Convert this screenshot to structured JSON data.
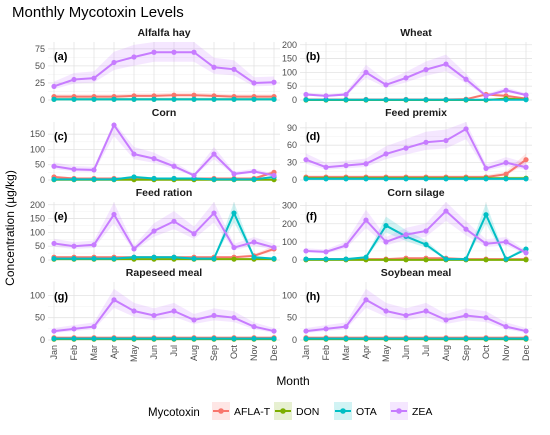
{
  "title": "Monthly Mycotoxin Levels",
  "xlabel": "Month",
  "ylabel": "Concentration (µg/kg)",
  "legend_title": "Mycotoxin",
  "colors": {
    "AFLA-T": "#F8766D",
    "DON": "#7CAE00",
    "OTA": "#00BFC4",
    "ZEA": "#C77CFF"
  },
  "chart_data": {
    "type": "line",
    "months": [
      "Jan",
      "Feb",
      "Mar",
      "Apr",
      "May",
      "Jun",
      "Jul",
      "Aug",
      "Sep",
      "Oct",
      "Nov",
      "Dec"
    ],
    "series_names": [
      "AFLA-T",
      "DON",
      "OTA",
      "ZEA"
    ],
    "legend_position": "bottom",
    "grid": true,
    "panels": [
      {
        "label": "(a)",
        "title": "Alfalfa hay",
        "ylim": [
          0,
          85
        ],
        "yticks": [
          0,
          25,
          50,
          75
        ],
        "series": {
          "AFLA-T": [
            5,
            5,
            5,
            5,
            6,
            6,
            7,
            7,
            6,
            5,
            5,
            5
          ],
          "DON": [
            1,
            1,
            1,
            1,
            1,
            1,
            1,
            1,
            1,
            1,
            1,
            1
          ],
          "OTA": [
            1,
            1,
            1,
            1,
            1,
            1,
            1,
            1,
            1,
            1,
            1,
            1
          ],
          "ZEA": [
            20,
            30,
            32,
            55,
            63,
            70,
            70,
            70,
            48,
            45,
            25,
            26
          ]
        }
      },
      {
        "label": "(b)",
        "title": "Wheat",
        "ylim": [
          0,
          210
        ],
        "yticks": [
          0,
          50,
          100,
          150,
          200
        ],
        "series": {
          "AFLA-T": [
            2,
            2,
            2,
            2,
            2,
            2,
            2,
            2,
            3,
            20,
            15,
            5
          ],
          "DON": [
            0,
            0,
            0,
            0,
            0,
            0,
            0,
            0,
            0,
            0,
            5,
            2
          ],
          "OTA": [
            1,
            1,
            1,
            1,
            1,
            1,
            1,
            1,
            1,
            1,
            1,
            1
          ],
          "ZEA": [
            20,
            15,
            20,
            100,
            55,
            80,
            110,
            130,
            75,
            15,
            35,
            18
          ]
        }
      },
      {
        "label": "(c)",
        "title": "Corn",
        "ylim": [
          0,
          190
        ],
        "yticks": [
          0,
          50,
          100,
          150
        ],
        "series": {
          "AFLA-T": [
            10,
            5,
            5,
            5,
            5,
            5,
            5,
            5,
            5,
            5,
            5,
            25
          ],
          "DON": [
            1,
            1,
            1,
            1,
            1,
            1,
            1,
            1,
            1,
            1,
            1,
            1
          ],
          "OTA": [
            2,
            2,
            2,
            2,
            10,
            5,
            5,
            5,
            2,
            2,
            2,
            10
          ],
          "ZEA": [
            45,
            35,
            33,
            180,
            85,
            70,
            45,
            15,
            85,
            20,
            28,
            15
          ]
        }
      },
      {
        "label": "(d)",
        "title": "Feed premix",
        "ylim": [
          0,
          100
        ],
        "yticks": [
          0,
          30,
          60,
          90
        ],
        "series": {
          "AFLA-T": [
            5,
            5,
            5,
            5,
            5,
            5,
            5,
            5,
            5,
            5,
            10,
            35
          ],
          "DON": [
            3,
            3,
            3,
            3,
            3,
            3,
            3,
            3,
            3,
            3,
            3,
            3
          ],
          "OTA": [
            2,
            2,
            2,
            2,
            2,
            2,
            2,
            2,
            2,
            2,
            2,
            2
          ],
          "ZEA": [
            35,
            22,
            25,
            28,
            45,
            55,
            65,
            68,
            88,
            20,
            30,
            22
          ]
        }
      },
      {
        "label": "(e)",
        "title": "Feed ration",
        "ylim": [
          0,
          210
        ],
        "yticks": [
          0,
          50,
          100,
          150,
          200
        ],
        "series": {
          "AFLA-T": [
            10,
            10,
            10,
            10,
            10,
            10,
            10,
            10,
            10,
            10,
            15,
            40
          ],
          "DON": [
            3,
            3,
            3,
            3,
            3,
            3,
            3,
            3,
            3,
            3,
            3,
            3
          ],
          "OTA": [
            5,
            5,
            5,
            5,
            10,
            10,
            10,
            5,
            5,
            170,
            10,
            5
          ],
          "ZEA": [
            60,
            50,
            55,
            165,
            40,
            105,
            140,
            95,
            170,
            45,
            65,
            45
          ]
        }
      },
      {
        "label": "(f)",
        "title": "Corn silage",
        "ylim": [
          0,
          320
        ],
        "yticks": [
          0,
          100,
          200,
          300
        ],
        "series": {
          "AFLA-T": [
            5,
            5,
            5,
            5,
            5,
            10,
            10,
            10,
            5,
            5,
            5,
            5
          ],
          "DON": [
            1,
            1,
            1,
            1,
            1,
            1,
            1,
            1,
            1,
            1,
            1,
            1
          ],
          "OTA": [
            5,
            5,
            5,
            15,
            190,
            130,
            85,
            5,
            5,
            250,
            5,
            60
          ],
          "ZEA": [
            50,
            45,
            80,
            220,
            100,
            140,
            160,
            270,
            170,
            90,
            100,
            40
          ]
        }
      },
      {
        "label": "(g)",
        "title": "Rapeseed meal",
        "ylim": [
          0,
          130
        ],
        "yticks": [
          0,
          50,
          100
        ],
        "series": {
          "AFLA-T": [
            5,
            5,
            5,
            5,
            5,
            5,
            5,
            5,
            5,
            5,
            5,
            5
          ],
          "DON": [
            2,
            2,
            2,
            2,
            2,
            2,
            2,
            2,
            2,
            2,
            2,
            2
          ],
          "OTA": [
            3,
            3,
            3,
            3,
            3,
            3,
            3,
            3,
            3,
            3,
            3,
            3
          ],
          "ZEA": [
            20,
            25,
            30,
            90,
            65,
            55,
            65,
            45,
            55,
            50,
            30,
            20
          ]
        }
      },
      {
        "label": "(h)",
        "title": "Soybean meal",
        "ylim": [
          0,
          130
        ],
        "yticks": [
          0,
          50,
          100
        ],
        "series": {
          "AFLA-T": [
            5,
            5,
            5,
            5,
            5,
            5,
            5,
            5,
            5,
            5,
            5,
            5
          ],
          "DON": [
            2,
            2,
            2,
            2,
            2,
            2,
            2,
            2,
            2,
            2,
            2,
            2
          ],
          "OTA": [
            3,
            3,
            3,
            3,
            3,
            3,
            3,
            3,
            3,
            3,
            3,
            3
          ],
          "ZEA": [
            20,
            25,
            30,
            90,
            65,
            55,
            65,
            45,
            55,
            50,
            30,
            20
          ]
        }
      }
    ]
  }
}
